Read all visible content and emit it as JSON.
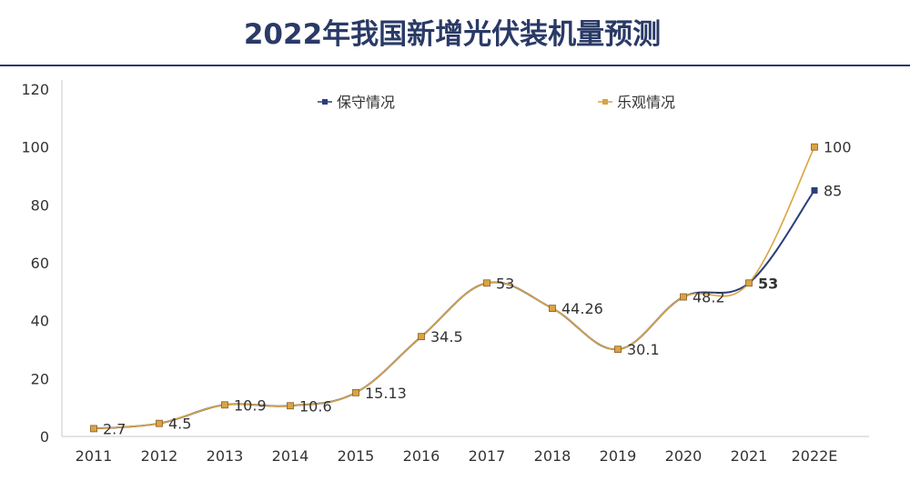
{
  "chart_data": {
    "type": "line",
    "title": "2022年我国新增光伏装机量预测",
    "xlabel": "",
    "ylabel": "",
    "categories": [
      "2011",
      "2012",
      "2013",
      "2014",
      "2015",
      "2016",
      "2017",
      "2018",
      "2019",
      "2020",
      "2021",
      "2022E"
    ],
    "ylim": [
      0,
      120
    ],
    "yticks": [
      0,
      20,
      40,
      60,
      80,
      100,
      120
    ],
    "grid": false,
    "legend_position": "top",
    "series": [
      {
        "name": "保守情况",
        "color": "#2c3e7a",
        "values": [
          2.7,
          4.5,
          10.9,
          10.6,
          15.13,
          34.5,
          53,
          44.26,
          30.1,
          48.2,
          53,
          85
        ],
        "labels": [
          "2.7",
          "4.5",
          "10.9",
          "10.6",
          "15.13",
          "34.5",
          "53",
          "44.26",
          "30.1",
          "48.2",
          "53",
          "85"
        ]
      },
      {
        "name": "乐观情况",
        "color": "#d9a441",
        "values": [
          2.7,
          4.5,
          10.9,
          10.6,
          15.13,
          34.5,
          53,
          44.26,
          30.1,
          48.2,
          53,
          100
        ],
        "labels": [
          "",
          "",
          "",
          "",
          "",
          "",
          "",
          "",
          "",
          "",
          "",
          "100"
        ]
      }
    ]
  }
}
